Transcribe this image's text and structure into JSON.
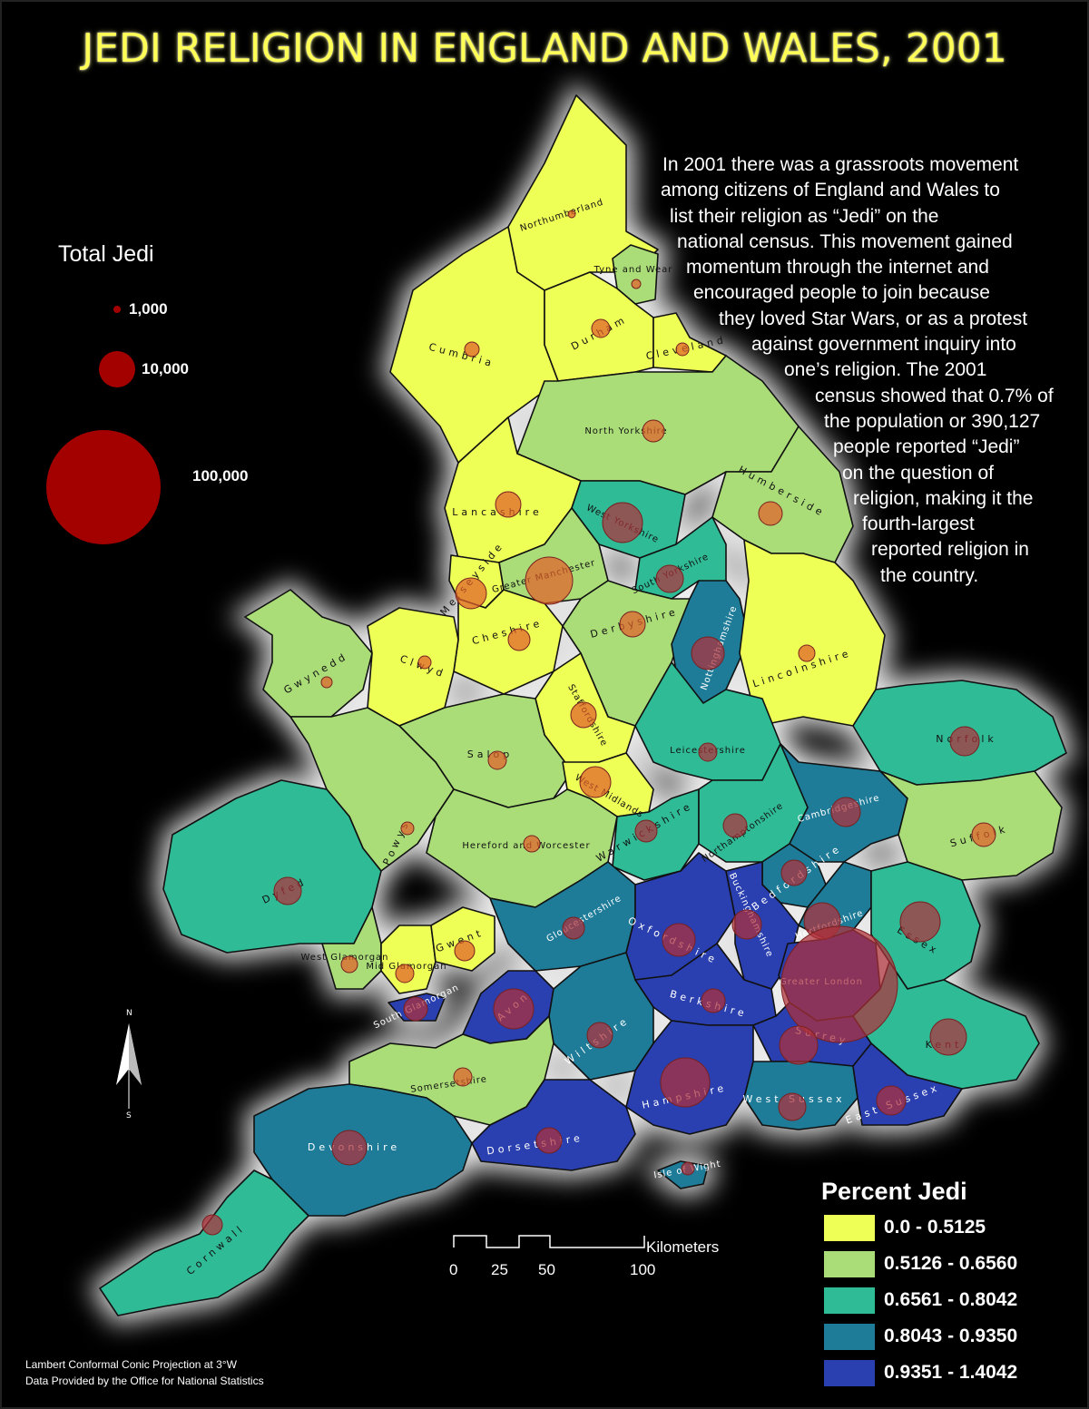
{
  "title": "JEDI RELIGION IN ENGLAND AND WALES, 2001",
  "intro_lines": [
    "In 2001 there was a grassroots movement",
    "among citizens of England and Wales to",
    "list their religion as “Jedi” on the",
    "national census.  This movement gained",
    "momentum through the internet and",
    "encouraged people to join because",
    "they loved Star Wars, or as a protest",
    "against government inquiry into",
    "one’s religion. The 2001",
    "census showed that 0.7% of",
    "the population or 390,127",
    "people reported “Jedi”",
    "on the question of",
    "religion, making it the",
    "fourth-largest",
    "reported religion in",
    "the country."
  ],
  "total_legend": {
    "title": "Total Jedi",
    "items": [
      {
        "label": "1,000"
      },
      {
        "label": "10,000"
      },
      {
        "label": "100,000"
      }
    ]
  },
  "percent_legend": {
    "title": "Percent Jedi",
    "classes": [
      {
        "label": "0.0 - 0.5125",
        "color": "#eeff55"
      },
      {
        "label": "0.5126 - 0.6560",
        "color": "#aadd77"
      },
      {
        "label": "0.6561 - 0.8042",
        "color": "#2fbb96"
      },
      {
        "label": "0.8043 - 0.9350",
        "color": "#1e7c99"
      },
      {
        "label": "0.9351 - 1.4042",
        "color": "#2a3fb0"
      }
    ]
  },
  "scale_bar": {
    "unit": "Kilometers",
    "ticks": [
      "0",
      "25",
      "50",
      "100"
    ]
  },
  "north_arrow": {
    "top": "N",
    "bottom": "S",
    "icon": "north-arrow-icon"
  },
  "footer": {
    "projection": "Lambert Conformal Conic Projection at 3°W",
    "source": "Data Provided by the Office for National Statistics"
  },
  "regions": [
    {
      "name": "Northumberland",
      "class": 0
    },
    {
      "name": "Tyne and Wear",
      "class": 1
    },
    {
      "name": "Cumbria",
      "class": 0
    },
    {
      "name": "Durham",
      "class": 0
    },
    {
      "name": "Cleveland",
      "class": 0
    },
    {
      "name": "North Yorkshire",
      "class": 1
    },
    {
      "name": "Humberside",
      "class": 1
    },
    {
      "name": "Lancashire",
      "class": 0
    },
    {
      "name": "West Yorkshire",
      "class": 2
    },
    {
      "name": "Greater Manchester",
      "class": 1
    },
    {
      "name": "South Yorkshire",
      "class": 2
    },
    {
      "name": "Merseyside",
      "class": 0
    },
    {
      "name": "Cheshire",
      "class": 0
    },
    {
      "name": "Derbyshire",
      "class": 1
    },
    {
      "name": "Nottinghamshire",
      "class": 3
    },
    {
      "name": "Lincolnshire",
      "class": 0
    },
    {
      "name": "Gwynedd",
      "class": 1
    },
    {
      "name": "Clwyd",
      "class": 0
    },
    {
      "name": "Staffordshire",
      "class": 0
    },
    {
      "name": "Salop",
      "class": 1
    },
    {
      "name": "West Midlands",
      "class": 0
    },
    {
      "name": "Leicestershire",
      "class": 2
    },
    {
      "name": "Norfolk",
      "class": 2
    },
    {
      "name": "Powys",
      "class": 1
    },
    {
      "name": "Dyfed",
      "class": 2
    },
    {
      "name": "Hereford and Worcester",
      "class": 1
    },
    {
      "name": "Warwickshire",
      "class": 2
    },
    {
      "name": "Northamptonshire",
      "class": 2
    },
    {
      "name": "Cambridgeshire",
      "class": 3
    },
    {
      "name": "Suffolk",
      "class": 1
    },
    {
      "name": "Bedfordshire",
      "class": 3
    },
    {
      "name": "Hertfordshire",
      "class": 3
    },
    {
      "name": "Essex",
      "class": 2
    },
    {
      "name": "Gloucestershire",
      "class": 3
    },
    {
      "name": "Oxfordshire",
      "class": 4
    },
    {
      "name": "Buckinghamshire",
      "class": 4
    },
    {
      "name": "Greater London",
      "class": 4
    },
    {
      "name": "West Glamorgan",
      "class": 1
    },
    {
      "name": "Mid Glamorgan",
      "class": 0
    },
    {
      "name": "Gwent",
      "class": 0
    },
    {
      "name": "South Glamorgan",
      "class": 4
    },
    {
      "name": "Avon",
      "class": 4
    },
    {
      "name": "Wiltshire",
      "class": 3
    },
    {
      "name": "Berkshire",
      "class": 4
    },
    {
      "name": "Surrey",
      "class": 4
    },
    {
      "name": "Kent",
      "class": 2
    },
    {
      "name": "Somersetshire",
      "class": 1
    },
    {
      "name": "Hampshire",
      "class": 4
    },
    {
      "name": "West Sussex",
      "class": 3
    },
    {
      "name": "East Sussex",
      "class": 4
    },
    {
      "name": "Devonshire",
      "class": 3
    },
    {
      "name": "Dorsetshire",
      "class": 4
    },
    {
      "name": "Isle of Wight",
      "class": 3
    },
    {
      "name": "Cornwall",
      "class": 2
    }
  ]
}
